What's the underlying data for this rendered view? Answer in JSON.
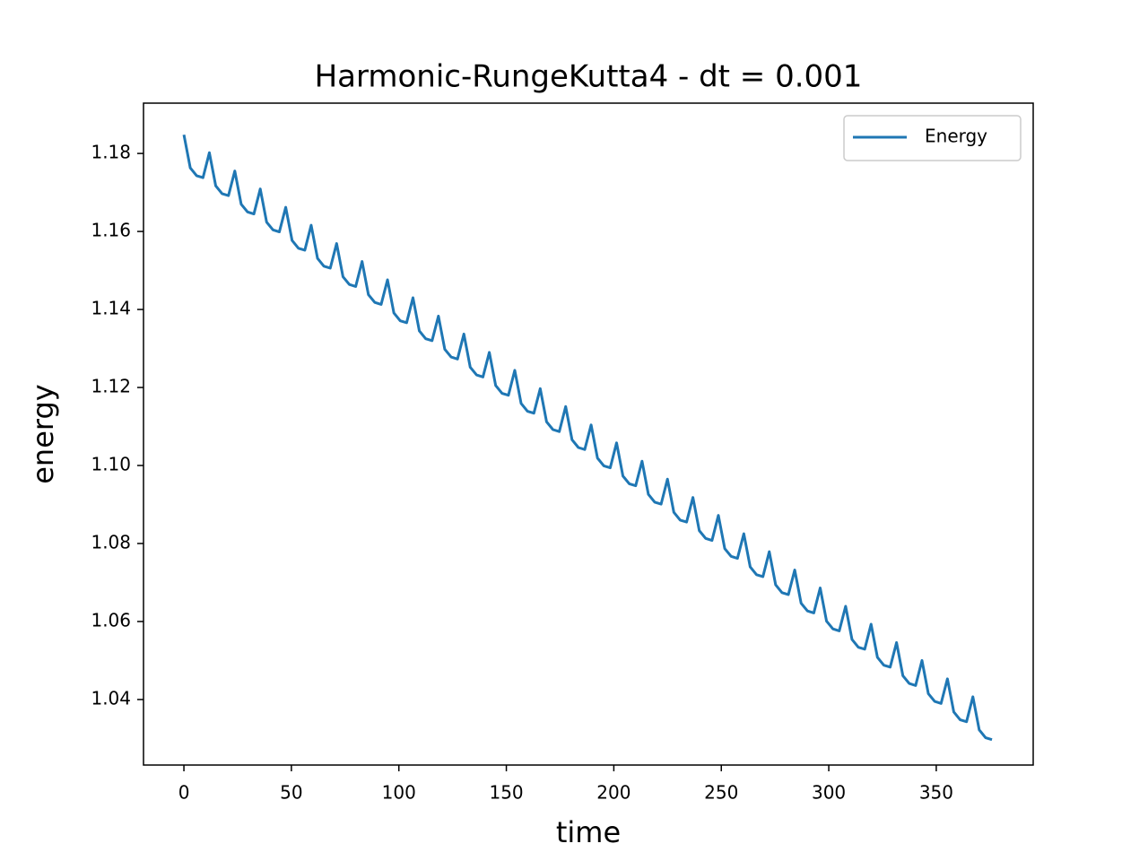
{
  "chart_data": {
    "type": "line",
    "title": "Harmonic-RungeKutta4 - dt = 0.001",
    "x_label": "time",
    "y_label": "energy",
    "x": [
      0,
      2.96,
      5.92,
      8.88,
      11.84,
      14.8,
      17.76,
      20.72,
      23.68,
      26.64,
      29.6,
      32.56,
      35.52,
      38.48,
      41.44,
      44.4,
      47.36,
      50.32,
      53.28,
      56.24,
      59.2,
      62.16,
      65.12,
      68.08,
      71.04,
      74,
      76.96,
      79.92,
      82.88,
      85.84,
      88.8,
      91.76,
      94.72,
      97.68,
      100.64,
      103.6,
      106.56,
      109.52,
      112.48,
      115.44,
      118.4,
      121.36,
      124.32,
      127.28,
      130.24,
      133.2,
      136.16,
      139.12,
      142.08,
      145.04,
      148,
      150.96,
      153.92,
      156.88,
      159.84,
      162.8,
      165.76,
      168.72,
      171.68,
      174.64,
      177.6,
      180.56,
      183.52,
      186.48,
      189.44,
      192.4,
      195.36,
      198.32,
      201.28,
      204.24,
      207.2,
      210.16,
      213.12,
      216.08,
      219.04,
      222,
      224.96,
      227.92,
      230.88,
      233.84,
      236.8,
      239.76,
      242.72,
      245.68,
      248.64,
      251.6,
      254.56,
      257.52,
      260.48,
      263.44,
      266.4,
      269.36,
      272.32,
      275.28,
      278.24,
      281.2,
      284.16,
      287.12,
      290.08,
      293.04,
      296,
      298.96,
      301.92,
      304.88,
      307.84,
      310.8,
      313.76,
      316.72,
      319.68,
      322.64,
      325.6,
      328.56,
      331.52,
      334.48,
      337.44,
      340.4,
      343.36,
      346.32,
      349.28,
      352.24,
      355.2,
      358.16,
      361.12,
      364.08,
      367.04,
      370,
      372.96,
      375.92
    ],
    "series": [
      {
        "name": "Energy",
        "color": "#1f77b4",
        "values": [
          1.1848,
          1.1763,
          1.1743,
          1.1738,
          1.1802,
          1.1717,
          1.1697,
          1.1692,
          1.1755,
          1.167,
          1.165,
          1.1645,
          1.1709,
          1.1624,
          1.1604,
          1.1599,
          1.1662,
          1.1577,
          1.1557,
          1.1552,
          1.1616,
          1.1531,
          1.1511,
          1.1506,
          1.1569,
          1.1484,
          1.1464,
          1.1459,
          1.1523,
          1.1438,
          1.1418,
          1.1413,
          1.1476,
          1.1391,
          1.1371,
          1.1366,
          1.143,
          1.1345,
          1.1325,
          1.132,
          1.1383,
          1.1298,
          1.1278,
          1.1273,
          1.1337,
          1.1252,
          1.1232,
          1.1227,
          1.129,
          1.1205,
          1.1185,
          1.118,
          1.1244,
          1.1159,
          1.1139,
          1.1134,
          1.1197,
          1.1112,
          1.1092,
          1.1087,
          1.1151,
          1.1066,
          1.1046,
          1.1041,
          1.1104,
          1.1019,
          1.0999,
          1.0994,
          1.1058,
          1.0973,
          1.0953,
          1.0948,
          1.1011,
          1.0926,
          1.0906,
          1.0901,
          1.0965,
          1.088,
          1.086,
          1.0855,
          1.0918,
          1.0833,
          1.0813,
          1.0808,
          1.0872,
          1.0787,
          1.0767,
          1.0762,
          1.0825,
          1.074,
          1.072,
          1.0715,
          1.0779,
          1.0694,
          1.0674,
          1.0669,
          1.0732,
          1.0647,
          1.0627,
          1.0622,
          1.0686,
          1.0601,
          1.0581,
          1.0576,
          1.0639,
          1.0554,
          1.0534,
          1.0529,
          1.0593,
          1.0508,
          1.0488,
          1.0483,
          1.0546,
          1.0461,
          1.0441,
          1.0436,
          1.05,
          1.0415,
          1.0395,
          1.039,
          1.0453,
          1.0368,
          1.0348,
          1.0343,
          1.0407,
          1.0322,
          1.0302,
          1.0297
        ]
      }
    ],
    "xlim": [
      -18.8,
      395.1
    ],
    "xticks": [
      0,
      50,
      100,
      150,
      200,
      250,
      300,
      350
    ],
    "ylim": [
      1.0232,
      1.1929
    ],
    "yticks": [
      1.04,
      1.06,
      1.08,
      {
        "value": 1.1,
        "label": "1.10"
      },
      1.12,
      1.14,
      1.16,
      1.18
    ],
    "grid": false,
    "legend": "upper right"
  }
}
